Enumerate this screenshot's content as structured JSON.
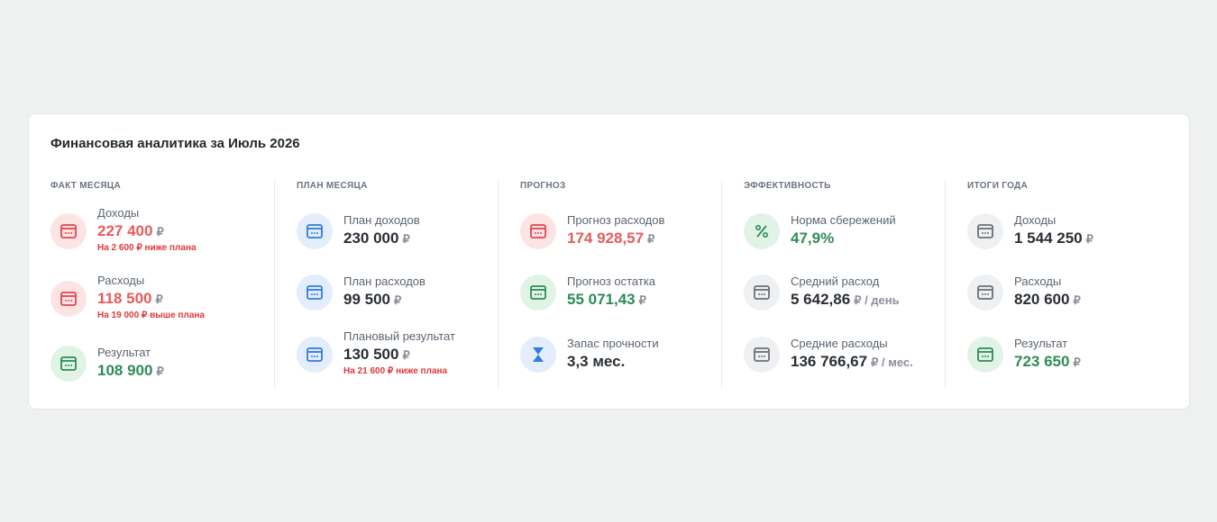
{
  "title": "Финансовая аналитика за Июль 2026",
  "columns": [
    {
      "heading": "ФАКТ МЕСЯЦА",
      "items": [
        {
          "label": "Доходы",
          "value": "227 400",
          "unit": "₽",
          "note": "На 2 600 ₽ ниже плана"
        },
        {
          "label": "Расходы",
          "value": "118 500",
          "unit": "₽",
          "note": "На 19 000 ₽ выше плана"
        },
        {
          "label": "Результат",
          "value": "108 900",
          "unit": "₽"
        }
      ]
    },
    {
      "heading": "ПЛАН МЕСЯЦА",
      "items": [
        {
          "label": "План доходов",
          "value": "230 000",
          "unit": "₽"
        },
        {
          "label": "План расходов",
          "value": "99 500",
          "unit": "₽"
        },
        {
          "label": "Плановый результат",
          "value": "130 500",
          "unit": "₽",
          "note": "На 21 600 ₽ ниже плана"
        }
      ]
    },
    {
      "heading": "ПРОГНОЗ",
      "items": [
        {
          "label": "Прогноз расходов",
          "value": "174 928,57",
          "unit": "₽"
        },
        {
          "label": "Прогноз остатка",
          "value": "55 071,43",
          "unit": "₽"
        },
        {
          "label": "Запас прочности",
          "value": "3,3 мес."
        }
      ]
    },
    {
      "heading": "ЭФФЕКТИВНОСТЬ",
      "items": [
        {
          "label": "Норма сбережений",
          "value": "47,9%"
        },
        {
          "label": "Средний расход",
          "value": "5 642,86",
          "unit": "₽ / день"
        },
        {
          "label": "Средние расходы",
          "value": "136 766,67",
          "unit": "₽ / мес."
        }
      ]
    },
    {
      "heading": "ИТОГИ ГОДА",
      "items": [
        {
          "label": "Доходы",
          "value": "1 544 250",
          "unit": "₽"
        },
        {
          "label": "Расходы",
          "value": "820 600",
          "unit": "₽"
        },
        {
          "label": "Результат",
          "value": "723 650",
          "unit": "₽"
        }
      ]
    }
  ]
}
